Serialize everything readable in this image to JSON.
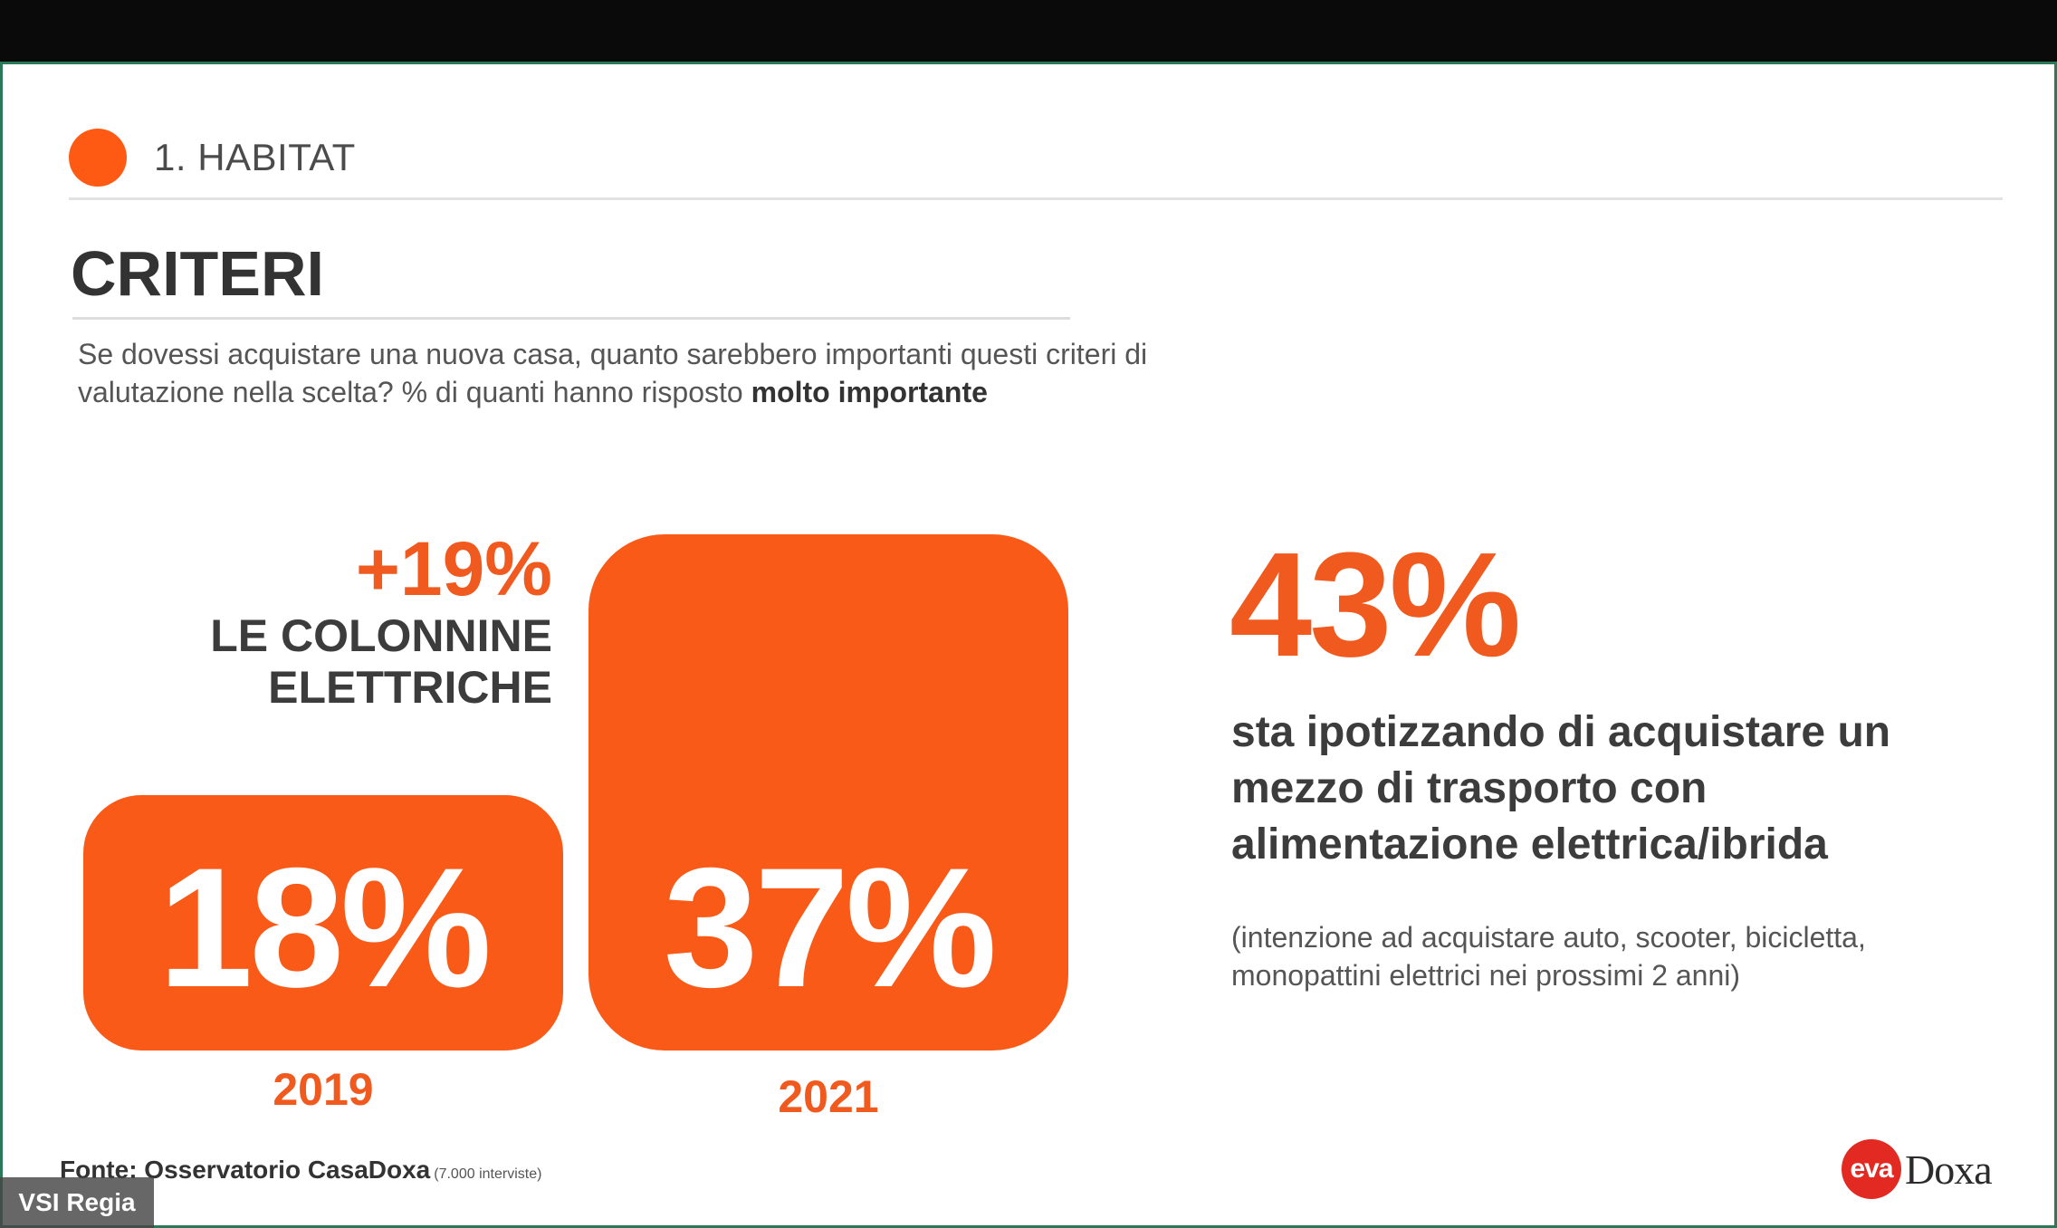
{
  "section": {
    "label": "1. HABITAT"
  },
  "title": "CRITERI",
  "question": {
    "text": "Se dovessi acquistare una nuova casa, quanto sarebbero importanti questi criteri di valutazione nella scelta? % di quanti hanno risposto",
    "emphasis": "molto importante"
  },
  "feature": {
    "delta": "+19%",
    "label_line1": "LE COLONNINE",
    "label_line2": "ELETTRICHE"
  },
  "chart_data": {
    "type": "bar",
    "categories": [
      "2019",
      "2021"
    ],
    "values": [
      18,
      37
    ],
    "value_labels": [
      "18%",
      "37%"
    ]
  },
  "highlight": {
    "value": "43%",
    "statement": "sta ipotizzando di acquistare un mezzo di trasporto con alimentazione elettrica/ibrida",
    "note": "(intenzione ad acquistare auto, scooter, bicicletta, monopattini elettrici nei prossimi 2 anni)"
  },
  "source": {
    "label": "Fonte: Osservatorio CasaDoxa",
    "note": "(7.000 interviste)"
  },
  "logo": {
    "badge": "eva",
    "name": "Doxa"
  },
  "overlay": {
    "label": "VSI Regia"
  },
  "colors": {
    "accent": "#fa5a18",
    "text": "#3c3c3c",
    "background": "#ffffff"
  }
}
